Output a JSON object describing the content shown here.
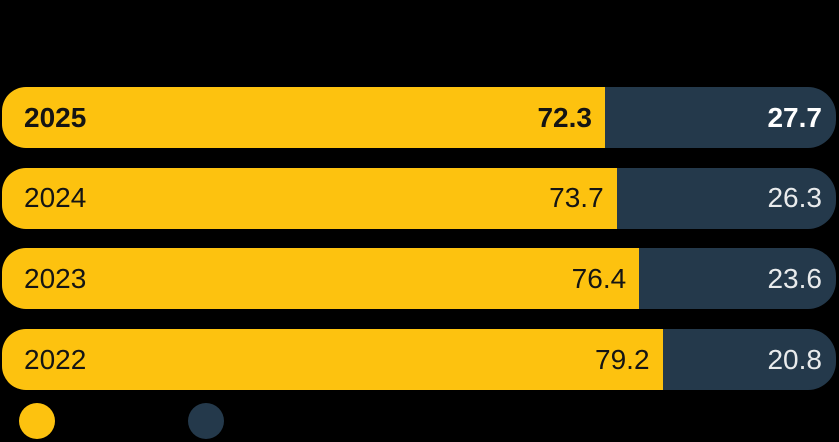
{
  "colors": {
    "background": "#000000",
    "yellow": "#FDC20F",
    "navy": "#24394B",
    "text_on_yellow": "#141414",
    "text_on_navy": "#E9EBEC",
    "text_on_navy_emphasis": "#FFFFFF"
  },
  "rows": [
    {
      "year": "2025",
      "seg1": {
        "label": "72.3",
        "value": 72.3
      },
      "seg2": {
        "label": "27.7",
        "value": 27.7
      }
    },
    {
      "year": "2024",
      "seg1": {
        "label": "73.7",
        "value": 73.7
      },
      "seg2": {
        "label": "26.3",
        "value": 26.3
      }
    },
    {
      "year": "2023",
      "seg1": {
        "label": "76.4",
        "value": 76.4
      },
      "seg2": {
        "label": "23.6",
        "value": 23.6
      }
    },
    {
      "year": "2022",
      "seg1": {
        "label": "79.2",
        "value": 79.2
      },
      "seg2": {
        "label": "20.8",
        "value": 20.8
      }
    }
  ],
  "legend": {
    "markers": [
      {
        "name": "yellow-series-marker",
        "color": "#FDC20F"
      },
      {
        "name": "navy-series-marker",
        "color": "#24394B"
      }
    ]
  },
  "chart_data": {
    "type": "bar",
    "orientation": "horizontal",
    "stacked": true,
    "title": "",
    "categories": [
      "2025",
      "2024",
      "2023",
      "2022"
    ],
    "series": [
      {
        "name": "",
        "color": "#FDC20F",
        "values": [
          72.3,
          73.7,
          76.4,
          79.2
        ]
      },
      {
        "name": "",
        "color": "#24394B",
        "values": [
          27.7,
          26.3,
          23.6,
          20.8
        ]
      }
    ],
    "xlim": [
      0,
      100
    ],
    "grid": false,
    "value_labels": "inside-end",
    "legend_position": "bottom-left",
    "notes": "percent shares per year; top row (2025) emphasized in bold"
  }
}
